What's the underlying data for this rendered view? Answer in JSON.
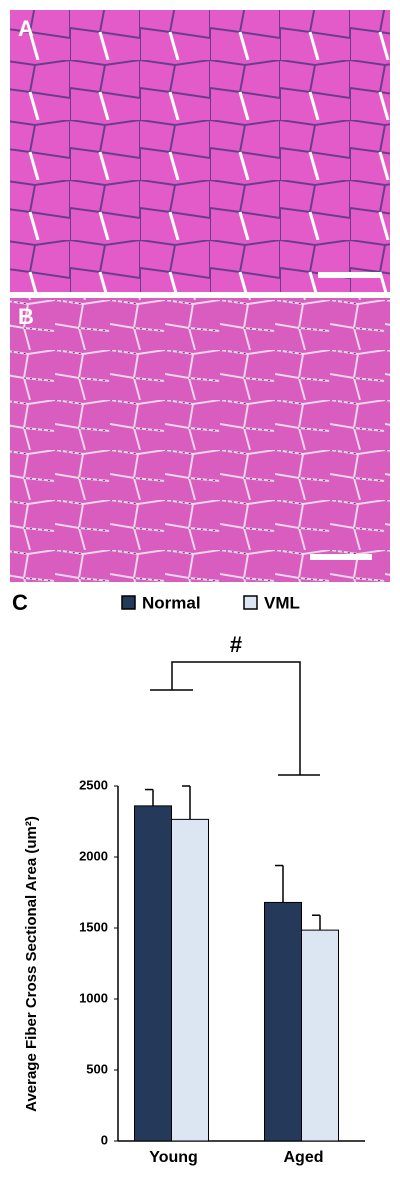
{
  "panel_labels": [
    "A",
    "B"
  ],
  "chart_data": {
    "type": "bar",
    "panel_label": "C",
    "annotation": "#",
    "y_label": "Average Fiber Cross Sectional Area (um²)",
    "categories": [
      "Young",
      "Aged"
    ],
    "series": [
      {
        "name": "Normal",
        "color": "#253a5a",
        "values": [
          2360,
          1680
        ],
        "errors": [
          115,
          260
        ]
      },
      {
        "name": "VML",
        "color": "#dce6f2",
        "values": [
          2265,
          1485
        ],
        "errors": [
          235,
          105
        ]
      }
    ],
    "ylim": [
      0,
      2500
    ],
    "yticks": [
      0,
      500,
      1000,
      1500,
      2000,
      2500
    ]
  }
}
